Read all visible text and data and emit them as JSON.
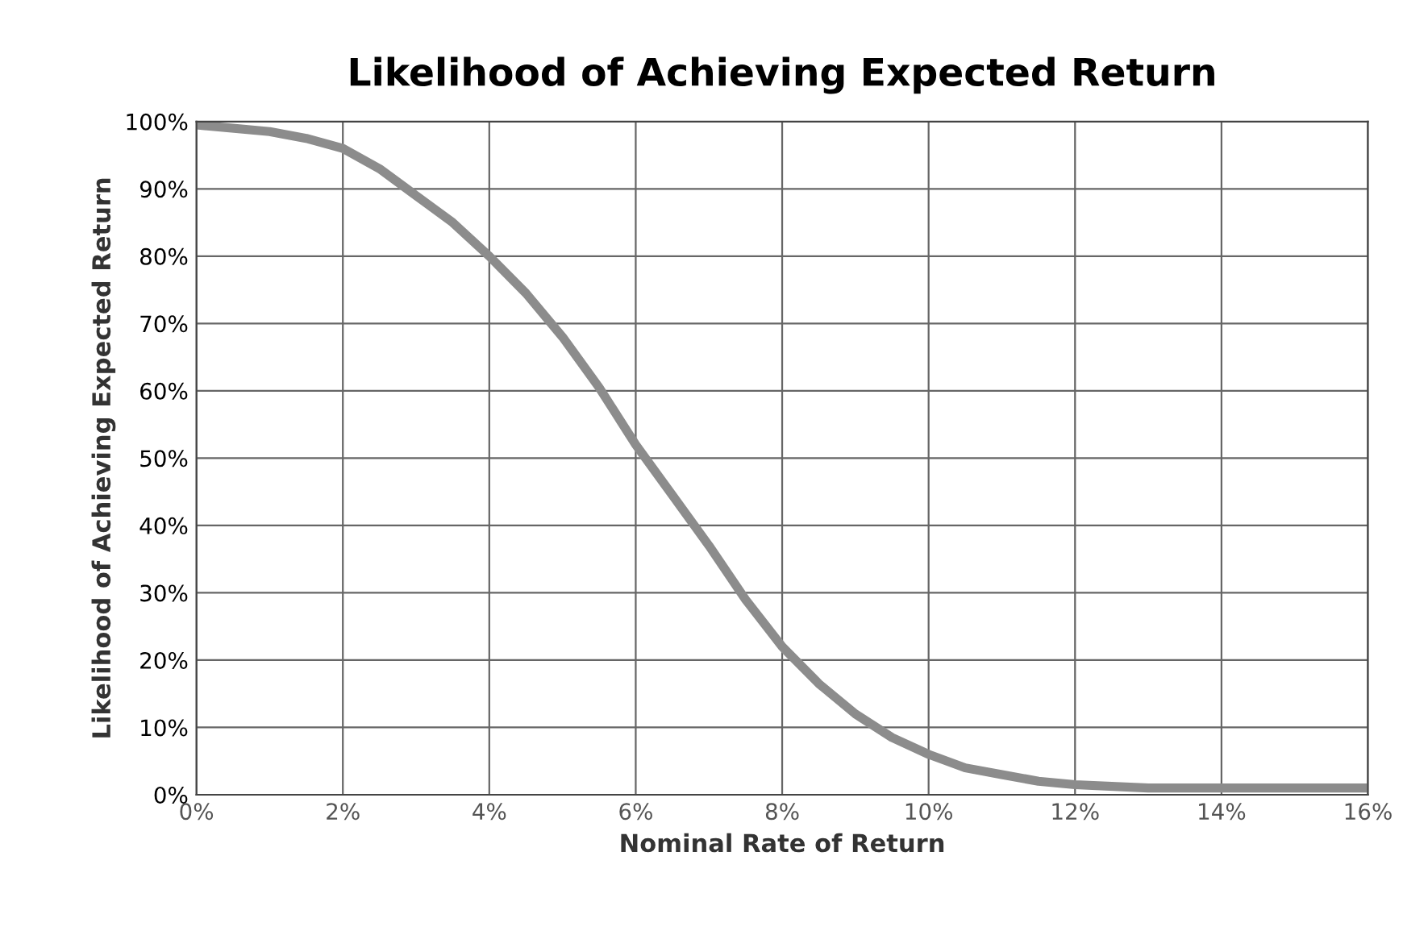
{
  "chart_data": {
    "type": "line",
    "title": "Likelihood of Achieving Expected Return",
    "xlabel": "Nominal Rate of Return",
    "ylabel": "Likelihood of Achieving Expected Return",
    "x": [
      0,
      1,
      1.5,
      2,
      2.5,
      3,
      3.5,
      4,
      4.5,
      5,
      5.5,
      6,
      6.5,
      7,
      7.5,
      8,
      8.5,
      9,
      9.5,
      10,
      10.5,
      11,
      11.5,
      12,
      13,
      14,
      15,
      16
    ],
    "series": [
      {
        "color": "#8c8c8c",
        "values": [
          99.5,
          98.5,
          97.5,
          96,
          93,
          89,
          85,
          80,
          74.5,
          68,
          60.5,
          52,
          44.5,
          37,
          29,
          22,
          16.5,
          12,
          8.5,
          6,
          4,
          3,
          2,
          1.5,
          1,
          1,
          1,
          1
        ]
      }
    ],
    "xlim": [
      0,
      16
    ],
    "ylim": [
      0,
      100
    ],
    "xticks": [
      {
        "value": 0,
        "label": "0%"
      },
      {
        "value": 2,
        "label": "2%"
      },
      {
        "value": 4,
        "label": "4%"
      },
      {
        "value": 6,
        "label": "6%"
      },
      {
        "value": 8,
        "label": "8%"
      },
      {
        "value": 10,
        "label": "10%"
      },
      {
        "value": 12,
        "label": "12%"
      },
      {
        "value": 14,
        "label": "14%"
      },
      {
        "value": 16,
        "label": "16%"
      }
    ],
    "yticks": [
      {
        "value": 0,
        "label": "0%"
      },
      {
        "value": 10,
        "label": "10%"
      },
      {
        "value": 20,
        "label": "20%"
      },
      {
        "value": 30,
        "label": "30%"
      },
      {
        "value": 40,
        "label": "40%"
      },
      {
        "value": 50,
        "label": "50%"
      },
      {
        "value": 60,
        "label": "60%"
      },
      {
        "value": 70,
        "label": "70%"
      },
      {
        "value": 80,
        "label": "80%"
      },
      {
        "value": 90,
        "label": "90%"
      },
      {
        "value": 100,
        "label": "100%"
      }
    ],
    "grid": true,
    "marker": "none",
    "line_style": "solid"
  }
}
